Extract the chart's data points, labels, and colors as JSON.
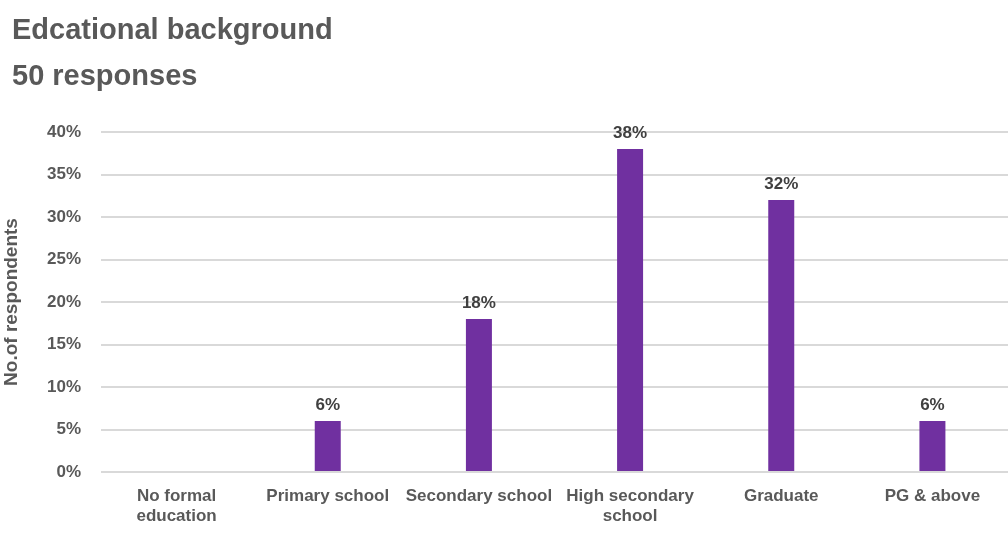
{
  "chart_data": {
    "type": "bar",
    "title": "Edcational background",
    "subtitle": "50 responses",
    "ylabel": "No.of respondents",
    "categories": [
      "No formal education",
      "Primary school",
      "Secondary school",
      "High secondary school",
      "Graduate",
      "PG & above"
    ],
    "values": [
      0,
      6,
      18,
      38,
      32,
      6
    ],
    "color": "#7030a0",
    "value_labels": [
      null,
      "6%",
      "18%",
      "38%",
      "32%",
      "6%"
    ],
    "ylim": [
      0,
      40
    ],
    "yticks": [
      {
        "value": 0,
        "label": "0%"
      },
      {
        "value": 5,
        "label": "5%"
      },
      {
        "value": 10,
        "label": "10%"
      },
      {
        "value": 15,
        "label": "15%"
      },
      {
        "value": 20,
        "label": "20%"
      },
      {
        "value": 25,
        "label": "25%"
      },
      {
        "value": 30,
        "label": "30%"
      },
      {
        "value": 35,
        "label": "35%"
      },
      {
        "value": 40,
        "label": "40%"
      }
    ],
    "grid": "y"
  }
}
